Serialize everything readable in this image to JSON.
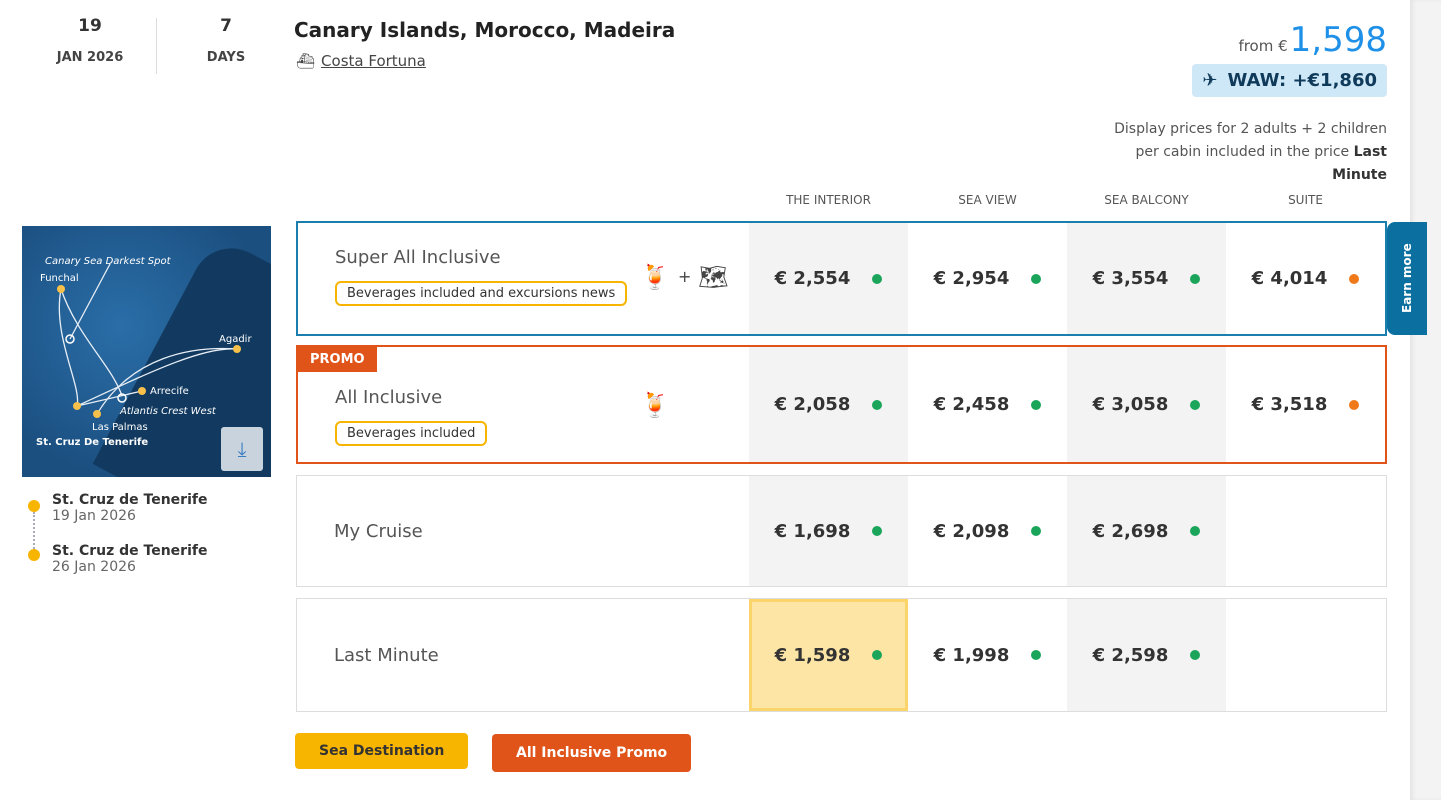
{
  "header": {
    "day": "19",
    "month_year": "JAN 2026",
    "duration": "7",
    "duration_unit": "DAYS",
    "title": "Canary Islands, Morocco, Madeira",
    "ship": "Costa Fortuna",
    "from_label": "from €",
    "from_price": "1,598",
    "flight": "WAW: +€1,860",
    "disclaimer": "Display prices for 2 adults + 2 children per cabin included in the price",
    "disclaimer_bold": "Last Minute"
  },
  "columns": [
    "THE INTERIOR",
    "SEA VIEW",
    "SEA BALCONY",
    "SUITE"
  ],
  "map": {
    "labels": [
      "Canary Sea Darkest Spot",
      "Funchal",
      "Agadir",
      "Arrecife",
      "Atlantis Crest West",
      "Las Palmas",
      "St. Cruz De Tenerife"
    ]
  },
  "itinerary": [
    {
      "port": "St. Cruz de Tenerife",
      "date": "19 Jan 2026"
    },
    {
      "port": "St. Cruz de Tenerife",
      "date": "26 Jan 2026"
    }
  ],
  "rows": [
    {
      "name": "Super All Inclusive",
      "badge": "Beverages included and excursions news",
      "prices": [
        "€ 2,554",
        "€ 2,954",
        "€ 3,554",
        "€ 4,014"
      ],
      "status": [
        "green",
        "green",
        "green",
        "orange"
      ]
    },
    {
      "name": "All Inclusive",
      "promo": "PROMO",
      "badge": "Beverages included",
      "prices": [
        "€ 2,058",
        "€ 2,458",
        "€ 3,058",
        "€ 3,518"
      ],
      "status": [
        "green",
        "green",
        "green",
        "orange"
      ]
    },
    {
      "name": "My Cruise",
      "prices": [
        "€ 1,698",
        "€ 2,098",
        "€ 2,698",
        ""
      ],
      "status": [
        "green",
        "green",
        "green",
        ""
      ]
    },
    {
      "name": "Last Minute",
      "prices": [
        "€ 1,598",
        "€ 1,998",
        "€ 2,598",
        ""
      ],
      "status": [
        "green",
        "green",
        "green",
        ""
      ]
    }
  ],
  "earn_more": "Earn more",
  "tags": [
    "Sea Destination",
    "All Inclusive Promo"
  ],
  "colors": {
    "green": "#1aa55a",
    "orange": "#f07a1a",
    "accent": "#1e90e8",
    "promo": "#e0541a",
    "tag_yellow": "#f7b500",
    "selected": "#fde5a6"
  }
}
